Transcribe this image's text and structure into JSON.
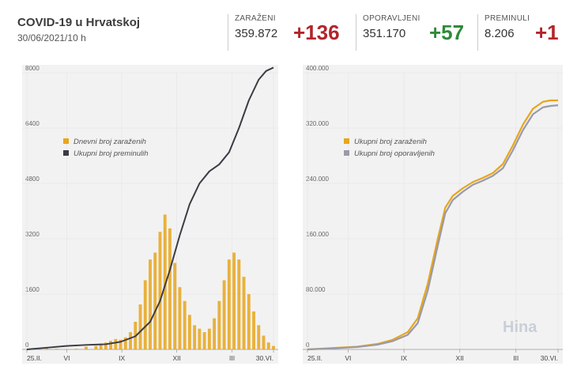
{
  "header": {
    "title": "COVID-19 u Hrvatskoj",
    "subtitle": "30/06/2021/10 h"
  },
  "stats": [
    {
      "label": "ZARAŽENI",
      "value": "359.872",
      "delta": "+136",
      "color": "#b3242b"
    },
    {
      "label": "OPORAVLJENI",
      "value": "351.170",
      "delta": "+57",
      "color": "#2e8b3a"
    },
    {
      "label": "PREMINULI",
      "value": "8.206",
      "delta": "+1",
      "color": "#b3242b"
    }
  ],
  "colors": {
    "orange": "#e8a61c",
    "dark": "#3b3b45",
    "grey": "#9a9aa8",
    "panel": "#f2f2f2"
  },
  "logo_text": "Hina",
  "chart_data": [
    {
      "type": "bar",
      "y_ticks": [
        "0",
        "1600",
        "3200",
        "4800",
        "6400",
        "8000"
      ],
      "ylim": [
        0,
        8000
      ],
      "x_ticks": [
        "25.II.",
        "VI",
        "IX",
        "XII",
        "III",
        "30.VI."
      ],
      "x_tick_pos": [
        0,
        0.162,
        0.385,
        0.608,
        0.832,
        1
      ],
      "series": [
        {
          "name": "Dnevni broj zaraženih",
          "type": "bar",
          "x": [
            0,
            0.04,
            0.08,
            0.12,
            0.16,
            0.2,
            0.24,
            0.28,
            0.3,
            0.32,
            0.34,
            0.36,
            0.38,
            0.4,
            0.42,
            0.44,
            0.46,
            0.48,
            0.5,
            0.52,
            0.54,
            0.56,
            0.58,
            0.6,
            0.62,
            0.64,
            0.66,
            0.68,
            0.7,
            0.72,
            0.74,
            0.76,
            0.78,
            0.8,
            0.82,
            0.84,
            0.86,
            0.88,
            0.9,
            0.92,
            0.94,
            0.96,
            0.98,
            1.0
          ],
          "values": [
            10,
            30,
            50,
            20,
            10,
            20,
            80,
            100,
            150,
            200,
            250,
            300,
            280,
            350,
            500,
            800,
            1300,
            2000,
            2600,
            2800,
            3400,
            3900,
            3500,
            2500,
            1800,
            1400,
            1000,
            700,
            600,
            500,
            600,
            900,
            1400,
            2000,
            2600,
            2800,
            2600,
            2100,
            1600,
            1100,
            700,
            400,
            200,
            100
          ]
        },
        {
          "name": "Ukupni broj preminulih",
          "type": "line",
          "x": [
            0,
            0.08,
            0.16,
            0.24,
            0.32,
            0.38,
            0.44,
            0.5,
            0.54,
            0.58,
            0.62,
            0.66,
            0.7,
            0.74,
            0.78,
            0.82,
            0.86,
            0.9,
            0.94,
            0.97,
            1.0
          ],
          "values": [
            0,
            50,
            100,
            130,
            150,
            220,
            380,
            800,
            1400,
            2300,
            3300,
            4200,
            4800,
            5150,
            5350,
            5700,
            6400,
            7200,
            7800,
            8050,
            8150
          ]
        }
      ]
    },
    {
      "type": "line",
      "y_ticks": [
        "0",
        "80.000",
        "160.000",
        "240.000",
        "320.000",
        "400.000"
      ],
      "ylim": [
        0,
        400000
      ],
      "x_ticks": [
        "25.II.",
        "VI",
        "IX",
        "XII",
        "III",
        "30.VI."
      ],
      "x_tick_pos": [
        0,
        0.162,
        0.385,
        0.608,
        0.832,
        1
      ],
      "series": [
        {
          "name": "Ukupni broj zaraženih",
          "x": [
            0,
            0.1,
            0.2,
            0.28,
            0.34,
            0.4,
            0.44,
            0.48,
            0.52,
            0.55,
            0.58,
            0.62,
            0.66,
            0.7,
            0.74,
            0.78,
            0.82,
            0.86,
            0.9,
            0.94,
            0.97,
            1.0
          ],
          "values": [
            0,
            2000,
            4000,
            8000,
            14000,
            25000,
            45000,
            95000,
            160000,
            205000,
            222000,
            233000,
            242000,
            248000,
            255000,
            268000,
            295000,
            325000,
            348000,
            358000,
            360000,
            360000
          ]
        },
        {
          "name": "Ukupni broj oporavljenih",
          "x": [
            0,
            0.1,
            0.2,
            0.28,
            0.34,
            0.4,
            0.44,
            0.48,
            0.52,
            0.55,
            0.58,
            0.62,
            0.66,
            0.7,
            0.74,
            0.78,
            0.82,
            0.86,
            0.9,
            0.94,
            0.97,
            1.0
          ],
          "values": [
            0,
            1500,
            3500,
            7000,
            12000,
            21000,
            38000,
            85000,
            150000,
            197000,
            216000,
            228000,
            238000,
            244000,
            251000,
            262000,
            288000,
            317000,
            340000,
            350000,
            352000,
            353000
          ]
        }
      ]
    }
  ]
}
